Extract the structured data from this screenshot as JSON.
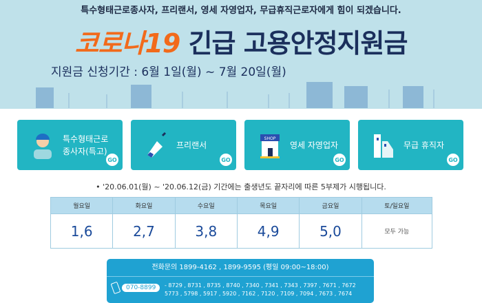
{
  "banner": {
    "tagline": "특수형태근로종사자, 프리랜서, 영세 자영업자, 무급휴직근로자에게 힘이 되겠습니다.",
    "title_orange": "코로나19",
    "title_navy": "긴급 고용안정지원금",
    "period": "지원금 신청기간 : 6월 1일(월) ~ 7월 20일(월)"
  },
  "cards": [
    {
      "label1": "특수형태근로",
      "label2": "종사자(특고)",
      "icon": "worker-icon",
      "go": "GO"
    },
    {
      "label1": "프리랜서",
      "label2": "",
      "icon": "pen-icon",
      "go": "GO"
    },
    {
      "label1": "영세 자영업자",
      "label2": "",
      "icon": "shop-icon",
      "shop_sign": "SHOP",
      "go": "GO"
    },
    {
      "label1": "무급 휴직자",
      "label2": "",
      "icon": "building-icon",
      "go": "GO"
    }
  ],
  "note": "• '20.06.01(월) ~ '20.06.12(금) 기간에는 출생년도 끝자리에 따른 5부제가 시행됩니다.",
  "schedule": {
    "headers": [
      "월요일",
      "화요일",
      "수요일",
      "목요일",
      "금요일",
      "토/일요일"
    ],
    "values": [
      "1,6",
      "2,7",
      "3,8",
      "4,9",
      "5,0",
      "모두 가능"
    ]
  },
  "contact": {
    "line": "전화문의  1899-4162 , 1899-9595 (평일 09:00~18:00)",
    "prefix": "070-8899",
    "ext1": "- 8729 , 8731 , 8735 , 8740 , 7340 , 7341 , 7343 , 7397 , 7671 , 7672",
    "ext2": "5773 , 5798 , 5917 , 5920 , 7162 , 7120 , 7109 , 7094 , 7673 , 7674"
  },
  "colors": {
    "banner": "#bfe1ea",
    "card": "#22b5c3",
    "orange": "#f26a1b",
    "navy": "#1b2f5c",
    "contact": "#1fa2d2"
  }
}
